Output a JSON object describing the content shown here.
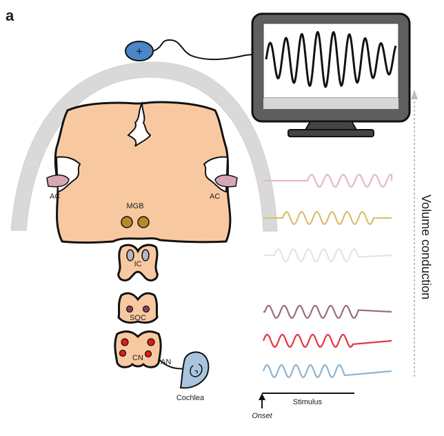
{
  "panel_letter": "a",
  "electrode_symbol": "+",
  "labels": {
    "ac_left": "AC",
    "ac_right": "AC",
    "mgb": "MGB",
    "ic": "IC",
    "soc": "SOC",
    "cn": "CN",
    "an": "AN",
    "cochlea": "Cochlea",
    "volume_conduction": "Volume conduction",
    "stimulus": "Stimulus",
    "onset": "Onset"
  },
  "colors": {
    "tissue": "#f8c9a0",
    "skull": "#d9d9d9",
    "electrode": "#4a86c8",
    "monitor_frame": "#5f5f5f",
    "mgb_nuclei": "#b8892a",
    "ic_nuclei": "#b5b5c2",
    "soc_nuclei": "#8a3d5c",
    "cn_nuclei": "#e01a1a",
    "cochlea": "#a9c4de",
    "ac_region": "#d9a6b5",
    "trace_ac": "#e6b8c3",
    "trace_mgb": "#d7c06b",
    "trace_ic": "#e8e3e0",
    "trace_soc": "#9a6a84",
    "trace_cn": "#e8343a",
    "trace_an": "#8fb3cf"
  }
}
